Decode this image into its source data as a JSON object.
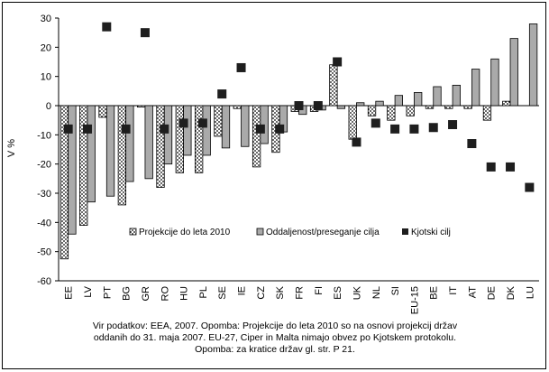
{
  "chart_data": {
    "type": "bar",
    "ylabel": "V %",
    "ylim": [
      -60,
      30
    ],
    "yticks": [
      -60,
      -50,
      -40,
      -30,
      -20,
      -10,
      0,
      10,
      20,
      30
    ],
    "grid": false,
    "legend_position": "inside-lower-center",
    "categories": [
      "EE",
      "LV",
      "PT",
      "BG",
      "GR",
      "RO",
      "HU",
      "PL",
      "SE",
      "IE",
      "CZ",
      "SK",
      "FR",
      "FI",
      "ES",
      "UK",
      "NL",
      "SI",
      "EU-15",
      "BE",
      "IT",
      "AT",
      "DE",
      "DK",
      "LU"
    ],
    "series": [
      {
        "name": "Projekcije do leta 2010",
        "kind": "bar",
        "pattern": "dotted",
        "values": [
          -52.5,
          -41,
          -4,
          -34,
          -0.5,
          -28,
          -23,
          -23,
          -10.5,
          -1,
          -21,
          -16,
          -2,
          -2,
          14,
          -11.5,
          -3.5,
          -5,
          -3.5,
          -1,
          -1,
          -1,
          -5,
          1.5,
          null
        ]
      },
      {
        "name": "Oddaljenost/preseganje cilja",
        "kind": "bar",
        "color": "#aaaaaa",
        "values": [
          -44,
          -33,
          -31,
          -26,
          -25,
          -20,
          -17,
          -17,
          -14.5,
          -14,
          -13,
          -9,
          -3,
          -1.5,
          -1,
          1,
          1.5,
          3.5,
          4.5,
          6.5,
          7,
          12.5,
          16,
          23,
          28
        ]
      },
      {
        "name": "Kjotski cilj",
        "kind": "marker",
        "color": "#1e1e1e",
        "values": [
          -8,
          -8,
          27,
          -8,
          25,
          -8,
          -6,
          -6,
          4,
          13,
          -8,
          -8,
          0,
          0,
          15,
          -12.5,
          -6,
          -8,
          -8,
          -7.5,
          -6.5,
          -13,
          -21,
          -21,
          -28
        ]
      }
    ]
  },
  "caption": {
    "line1": "Vir podatkov: EEA, 2007. Opomba: Projekcije do leta 2010 so na osnovi projekcij držav",
    "line2": "oddanih do 31. maja 2007. EU-27, Ciper in Malta nimajo obvez po Kjotskem protokolu.",
    "line3": "Opomba: za kratice držav gl. str. P 21."
  }
}
